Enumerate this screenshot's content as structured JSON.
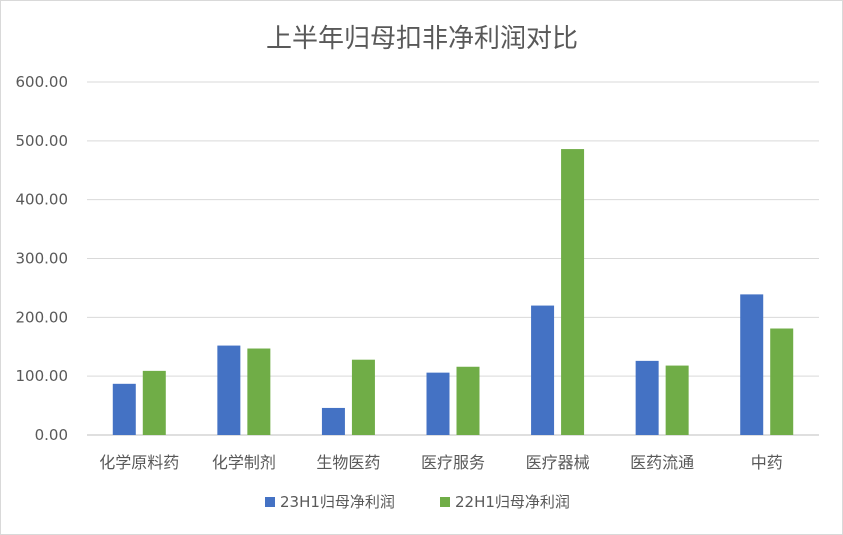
{
  "chart_data": {
    "type": "bar",
    "title": "上半年归母扣非净利润对比",
    "xlabel": "",
    "ylabel": "",
    "categories": [
      "化学原料药",
      "化学制剂",
      "生物医药",
      "医疗服务",
      "医疗器械",
      "医药流通",
      "中药"
    ],
    "series": [
      {
        "name": "23H1归母净利润",
        "color": "#4472c4",
        "values": [
          87,
          152,
          46,
          106,
          220,
          126,
          239
        ]
      },
      {
        "name": "22H1归母净利润",
        "color": "#70ad47",
        "values": [
          109,
          147,
          128,
          116,
          486,
          118,
          181
        ]
      }
    ],
    "ylim": [
      0,
      600
    ],
    "yticks": [
      "0.00",
      "100.00",
      "200.00",
      "300.00",
      "400.00",
      "500.00",
      "600.00"
    ],
    "grid": true,
    "legend_position": "bottom"
  }
}
